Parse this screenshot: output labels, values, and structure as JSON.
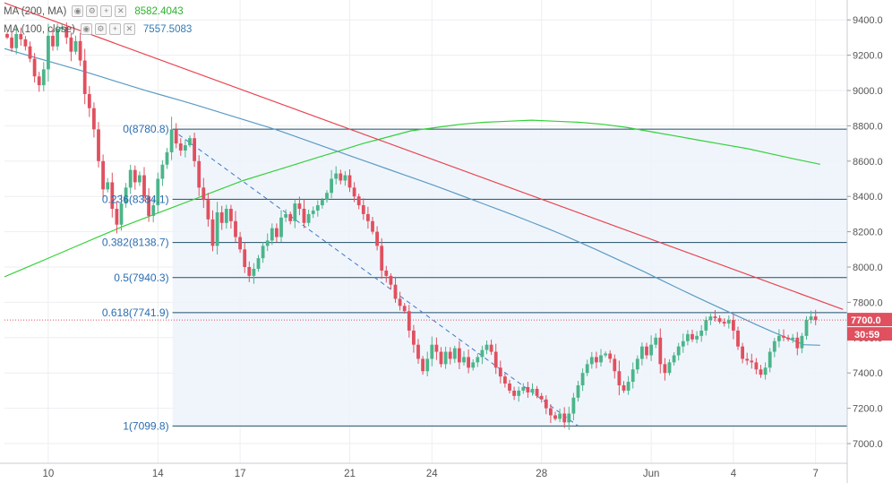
{
  "legend": {
    "ma200": {
      "label": "MA (200, MA)",
      "value": "8582.4043",
      "color": "#2ecc40"
    },
    "ma100": {
      "label": "MA (100, close)",
      "value": "7557.5083",
      "color": "#2f7bb5"
    },
    "buttons": [
      "eye-icon",
      "gear-icon",
      "plus-icon",
      "close-icon"
    ]
  },
  "colors": {
    "up": "#4bb58a",
    "down": "#e0505f",
    "ma200": "#34d13a",
    "ma100": "#5b9bc3",
    "trend": "#e8454f",
    "fib_line": "#1f4e66",
    "fib_text": "#2a6db0",
    "fib_fill": "#edf3fb",
    "price_badge": "#e0505f",
    "grid": "#eceef1",
    "axis_text": "#555555"
  },
  "chart_data": {
    "type": "candlestick",
    "yaxis": {
      "min": 6900,
      "max": 9500,
      "ticks": [
        "7000.0",
        "7200.0",
        "7400.0",
        "7600.0",
        "7800.0",
        "8000.0",
        "8200.0",
        "8400.0",
        "8600.0",
        "8800.0",
        "9000.0",
        "9200.0",
        "9400.0"
      ]
    },
    "xaxis": {
      "ticks": [
        {
          "label": "10",
          "bar": 9
        },
        {
          "label": "14",
          "bar": 33
        },
        {
          "label": "17",
          "bar": 51
        },
        {
          "label": "21",
          "bar": 75
        },
        {
          "label": "24",
          "bar": 93
        },
        {
          "label": "28",
          "bar": 117
        },
        {
          "label": "Jun",
          "bar": 141
        },
        {
          "label": "4",
          "bar": 159
        },
        {
          "label": "7",
          "bar": 177
        }
      ]
    },
    "bar_hours": 4,
    "closes": [
      9300,
      9240,
      9320,
      9290,
      9250,
      9180,
      9080,
      9030,
      9120,
      9310,
      9250,
      9350,
      9360,
      9300,
      9220,
      9280,
      9170,
      8980,
      8900,
      8780,
      8600,
      8440,
      8480,
      8330,
      8240,
      8360,
      8450,
      8550,
      8480,
      8520,
      8400,
      8290,
      8350,
      8500,
      8580,
      8650,
      8780,
      8700,
      8660,
      8690,
      8730,
      8600,
      8450,
      8380,
      8270,
      8120,
      8310,
      8250,
      8330,
      8260,
      8170,
      8100,
      8000,
      7950,
      7990,
      8050,
      8120,
      8150,
      8220,
      8170,
      8280,
      8300,
      8260,
      8360,
      8330,
      8250,
      8300,
      8320,
      8350,
      8380,
      8420,
      8500,
      8530,
      8490,
      8520,
      8450,
      8400,
      8350,
      8300,
      8260,
      8200,
      8120,
      7980,
      7950,
      7900,
      7820,
      7780,
      7750,
      7640,
      7560,
      7480,
      7410,
      7480,
      7560,
      7520,
      7450,
      7520,
      7480,
      7540,
      7460,
      7490,
      7430,
      7460,
      7490,
      7530,
      7560,
      7520,
      7430,
      7380,
      7340,
      7300,
      7270,
      7300,
      7320,
      7290,
      7310,
      7270,
      7250,
      7200,
      7160,
      7140,
      7170,
      7120,
      7170,
      7260,
      7330,
      7400,
      7450,
      7490,
      7460,
      7500,
      7510,
      7480,
      7410,
      7330,
      7300,
      7350,
      7420,
      7480,
      7550,
      7500,
      7560,
      7600,
      7450,
      7400,
      7460,
      7500,
      7550,
      7580,
      7620,
      7590,
      7610,
      7640,
      7700,
      7720,
      7710,
      7690,
      7680,
      7700,
      7640,
      7550,
      7480,
      7470,
      7460,
      7420,
      7390,
      7430,
      7520,
      7580,
      7610,
      7600,
      7590,
      7600,
      7540,
      7610,
      7700,
      7720,
      7700
    ],
    "ma100": [
      9240,
      9214,
      9188,
      9162,
      9136,
      9110,
      9082,
      9054,
      9026,
      8998,
      8972,
      8946,
      8920,
      8892,
      8864,
      8836,
      8808,
      8780,
      8748,
      8716,
      8684,
      8652,
      8620,
      8588,
      8556,
      8524,
      8492,
      8460,
      8426,
      8392,
      8358,
      8324,
      8290,
      8254,
      8218,
      8180,
      8140,
      8100,
      8058,
      8016,
      7974,
      7930,
      7886,
      7842,
      7800,
      7758,
      7716,
      7674,
      7634,
      7596,
      7560,
      7557
    ],
    "ma200": [
      7940,
      7998,
      8056,
      8114,
      8172,
      8230,
      8282,
      8334,
      8386,
      8438,
      8490,
      8532,
      8574,
      8616,
      8658,
      8700,
      8736,
      8772,
      8790,
      8808,
      8820,
      8826,
      8832,
      8826,
      8820,
      8808,
      8790,
      8766,
      8742,
      8718,
      8694,
      8670,
      8640,
      8610,
      8582
    ],
    "trendline": {
      "from": {
        "bar": -1,
        "price": 9500
      },
      "to": {
        "bar": 183,
        "price": 7760
      }
    },
    "fib_pattern": {
      "start": {
        "bar": 36,
        "price": 8780.8
      },
      "end": {
        "bar": 125,
        "price": 7099.8
      },
      "levels": [
        {
          "ratio": 0,
          "label": "0(8780.8)",
          "price": 8780.8
        },
        {
          "ratio": 0.236,
          "label": "0.236(8384.1)",
          "price": 8384.1
        },
        {
          "ratio": 0.382,
          "label": "0.382(8138.7)",
          "price": 8138.7
        },
        {
          "ratio": 0.5,
          "label": "0.5(7940.3)",
          "price": 7940.3
        },
        {
          "ratio": 0.618,
          "label": "0.618(7741.9)",
          "price": 7741.9
        },
        {
          "ratio": 1,
          "label": "1(7099.8)",
          "price": 7099.8
        }
      ]
    },
    "last_price": {
      "value": 7700,
      "label": "7700.0",
      "countdown": "30:59"
    }
  }
}
